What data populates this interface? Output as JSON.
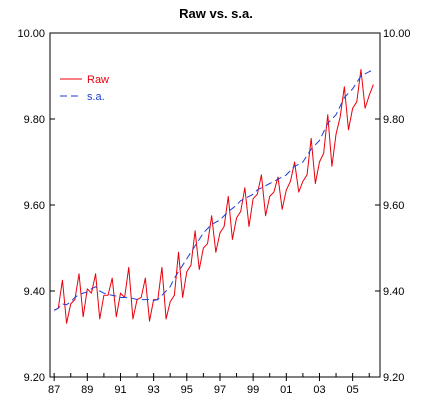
{
  "chart_data": {
    "type": "line",
    "title": "Raw vs. s.a.",
    "xlabel": "",
    "ylabel": "",
    "ylim": [
      9.2,
      10.0
    ],
    "xlim": [
      1986.75,
      2006.65
    ],
    "y_ticks": [
      "9.20",
      "9.40",
      "9.60",
      "9.80",
      "10.00"
    ],
    "y_tick_values": [
      9.2,
      9.4,
      9.6,
      9.8,
      10.0
    ],
    "x_ticks": [
      "87",
      "89",
      "91",
      "93",
      "95",
      "97",
      "99",
      "01",
      "03",
      "05"
    ],
    "x_tick_values": [
      1987,
      1989,
      1991,
      1993,
      1995,
      1997,
      1999,
      2001,
      2003,
      2005
    ],
    "right_axis": true,
    "grid": false,
    "legend_position": "upper-left",
    "series": [
      {
        "name": "Raw",
        "color": "#e8000b",
        "dash": "solid",
        "x": [
          1987.0,
          1987.25,
          1987.5,
          1987.75,
          1988.0,
          1988.25,
          1988.5,
          1988.75,
          1989.0,
          1989.25,
          1989.5,
          1989.75,
          1990.0,
          1990.25,
          1990.5,
          1990.75,
          1991.0,
          1991.25,
          1991.5,
          1991.75,
          1992.0,
          1992.25,
          1992.5,
          1992.75,
          1993.0,
          1993.25,
          1993.5,
          1993.75,
          1994.0,
          1994.25,
          1994.5,
          1994.75,
          1995.0,
          1995.25,
          1995.5,
          1995.75,
          1996.0,
          1996.25,
          1996.5,
          1996.75,
          1997.0,
          1997.25,
          1997.5,
          1997.75,
          1998.0,
          1998.25,
          1998.5,
          1998.75,
          1999.0,
          1999.25,
          1999.5,
          1999.75,
          2000.0,
          2000.25,
          2000.5,
          2000.75,
          2001.0,
          2001.25,
          2001.5,
          2001.75,
          2002.0,
          2002.25,
          2002.5,
          2002.75,
          2003.0,
          2003.25,
          2003.5,
          2003.75,
          2004.0,
          2004.25,
          2004.5,
          2004.75,
          2005.0,
          2005.25,
          2005.5,
          2005.75,
          2006.0,
          2006.25
        ],
        "values": [
          9.355,
          9.36,
          9.425,
          9.325,
          9.37,
          9.38,
          9.44,
          9.34,
          9.405,
          9.395,
          9.44,
          9.335,
          9.39,
          9.39,
          9.43,
          9.34,
          9.395,
          9.385,
          9.455,
          9.335,
          9.38,
          9.385,
          9.43,
          9.33,
          9.38,
          9.38,
          9.455,
          9.335,
          9.375,
          9.39,
          9.49,
          9.385,
          9.445,
          9.46,
          9.54,
          9.45,
          9.5,
          9.51,
          9.575,
          9.49,
          9.535,
          9.55,
          9.62,
          9.52,
          9.57,
          9.585,
          9.64,
          9.55,
          9.615,
          9.625,
          9.67,
          9.575,
          9.62,
          9.63,
          9.665,
          9.59,
          9.635,
          9.655,
          9.7,
          9.63,
          9.655,
          9.67,
          9.755,
          9.65,
          9.7,
          9.72,
          9.81,
          9.69,
          9.765,
          9.805,
          9.875,
          9.775,
          9.825,
          9.84,
          9.915,
          9.825,
          9.855,
          9.88
        ]
      },
      {
        "name": "s.a.",
        "color": "#1f3fd6",
        "dash": "dashed",
        "x": [
          1987.0,
          1987.25,
          1987.5,
          1987.75,
          1988.0,
          1988.25,
          1988.5,
          1988.75,
          1989.0,
          1989.25,
          1989.5,
          1989.75,
          1990.0,
          1990.25,
          1990.5,
          1990.75,
          1991.0,
          1991.25,
          1991.5,
          1991.75,
          1992.0,
          1992.25,
          1992.5,
          1992.75,
          1993.0,
          1993.25,
          1993.5,
          1993.75,
          1994.0,
          1994.25,
          1994.5,
          1994.75,
          1995.0,
          1995.25,
          1995.5,
          1995.75,
          1996.0,
          1996.25,
          1996.5,
          1996.75,
          1997.0,
          1997.25,
          1997.5,
          1997.75,
          1998.0,
          1998.25,
          1998.5,
          1998.75,
          1999.0,
          1999.25,
          1999.5,
          1999.75,
          2000.0,
          2000.25,
          2000.5,
          2000.75,
          2001.0,
          2001.25,
          2001.5,
          2001.75,
          2002.0,
          2002.25,
          2002.5,
          2002.75,
          2003.0,
          2003.25,
          2003.5,
          2003.75,
          2004.0,
          2004.25,
          2004.5,
          2004.75,
          2005.0,
          2005.25,
          2005.5,
          2005.75,
          2006.0,
          2006.25
        ],
        "values": [
          9.355,
          9.36,
          9.37,
          9.368,
          9.375,
          9.385,
          9.392,
          9.395,
          9.398,
          9.405,
          9.41,
          9.4,
          9.395,
          9.392,
          9.39,
          9.388,
          9.385,
          9.385,
          9.384,
          9.383,
          9.38,
          9.38,
          9.38,
          9.38,
          9.378,
          9.38,
          9.39,
          9.4,
          9.41,
          9.43,
          9.445,
          9.46,
          9.475,
          9.49,
          9.505,
          9.52,
          9.535,
          9.545,
          9.555,
          9.56,
          9.565,
          9.575,
          9.585,
          9.592,
          9.6,
          9.61,
          9.615,
          9.62,
          9.625,
          9.635,
          9.64,
          9.645,
          9.65,
          9.655,
          9.66,
          9.665,
          9.67,
          9.68,
          9.69,
          9.695,
          9.7,
          9.715,
          9.73,
          9.74,
          9.75,
          9.77,
          9.79,
          9.8,
          9.81,
          9.83,
          9.85,
          9.86,
          9.87,
          9.885,
          9.9,
          9.905,
          9.91,
          9.915
        ]
      }
    ]
  }
}
